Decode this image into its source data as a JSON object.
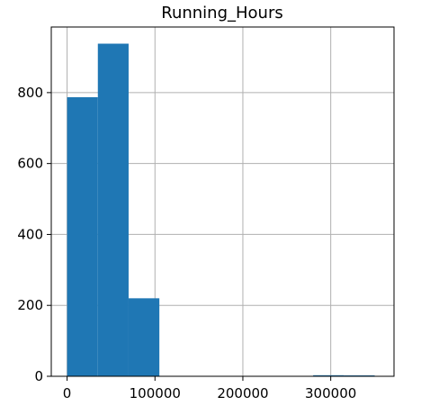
{
  "chart_data": {
    "type": "histogram",
    "title": "Running_Hours",
    "xlabel": "",
    "ylabel": "",
    "xlim": [
      -18000,
      372000
    ],
    "ylim": [
      0,
      985
    ],
    "grid": true,
    "bar_color": "#1f77b4",
    "grid_color": "#b0b0b0",
    "bins": [
      {
        "x0": 0,
        "x1": 35000,
        "count": 787
      },
      {
        "x0": 35000,
        "x1": 70000,
        "count": 938
      },
      {
        "x0": 70000,
        "x1": 105000,
        "count": 220
      },
      {
        "x0": 105000,
        "x1": 140000,
        "count": 0
      },
      {
        "x0": 140000,
        "x1": 175000,
        "count": 0
      },
      {
        "x0": 175000,
        "x1": 210000,
        "count": 0
      },
      {
        "x0": 210000,
        "x1": 245000,
        "count": 0
      },
      {
        "x0": 245000,
        "x1": 280000,
        "count": 0
      },
      {
        "x0": 280000,
        "x1": 315000,
        "count": 3
      },
      {
        "x0": 315000,
        "x1": 350000,
        "count": 1
      }
    ],
    "x_ticks": [
      {
        "value": 0,
        "label": "0"
      },
      {
        "value": 100000,
        "label": "100000"
      },
      {
        "value": 200000,
        "label": "200000"
      },
      {
        "value": 300000,
        "label": "300000"
      }
    ],
    "y_ticks": [
      {
        "value": 0,
        "label": "0"
      },
      {
        "value": 200,
        "label": "200"
      },
      {
        "value": 400,
        "label": "400"
      },
      {
        "value": 600,
        "label": "600"
      },
      {
        "value": 800,
        "label": "800"
      }
    ]
  }
}
